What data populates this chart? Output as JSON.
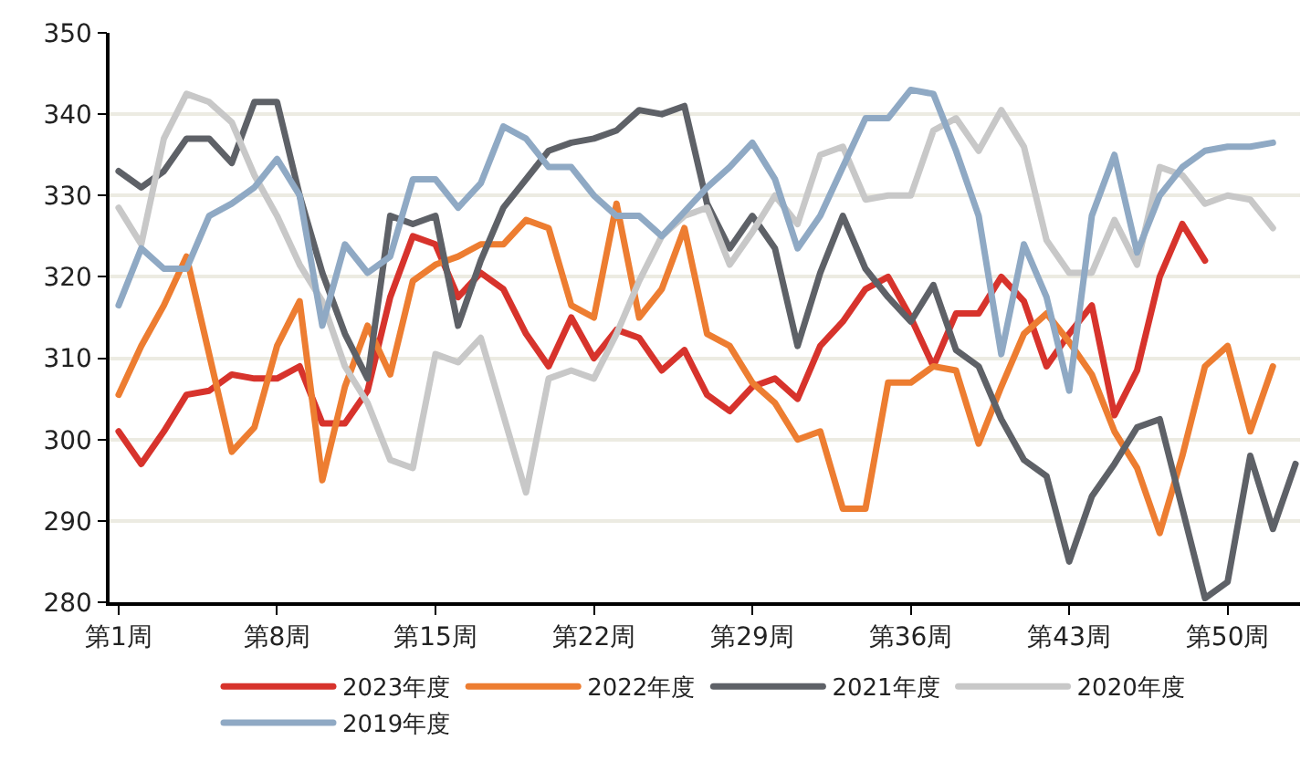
{
  "chart_data": {
    "type": "line",
    "categories": [
      "第1周",
      null,
      null,
      null,
      null,
      null,
      null,
      "第8周",
      null,
      null,
      null,
      null,
      null,
      null,
      "第15周",
      null,
      null,
      null,
      null,
      null,
      null,
      "第22周",
      null,
      null,
      null,
      null,
      null,
      null,
      "第29周",
      null,
      null,
      null,
      null,
      null,
      null,
      "第36周",
      null,
      null,
      null,
      null,
      null,
      null,
      "第43周",
      null,
      null,
      null,
      null,
      null,
      null,
      "第50周",
      null,
      null,
      null
    ],
    "series": [
      {
        "name": "2023年度",
        "color": "#d7332c",
        "values": [
          301,
          297,
          301,
          305.5,
          306,
          308,
          307.5,
          307.5,
          309,
          302,
          302,
          306,
          317.5,
          325,
          324,
          317.5,
          320.5,
          318.5,
          313,
          309,
          315,
          310,
          313.5,
          312.5,
          308.5,
          311,
          305.5,
          303.5,
          306.5,
          307.5,
          305,
          311.5,
          314.5,
          318.5,
          320,
          315,
          309,
          315.5,
          315.5,
          320,
          317,
          309,
          313,
          316.5,
          303,
          308.5,
          320,
          326.5,
          322,
          null,
          null,
          null,
          null
        ]
      },
      {
        "name": "2022年度",
        "color": "#ed7d31",
        "values": [
          305.5,
          311.5,
          316.5,
          322.5,
          310.5,
          298.5,
          301.5,
          311.5,
          317,
          295,
          306.5,
          314,
          308,
          319.5,
          321.5,
          322.5,
          324,
          324,
          327,
          326,
          316.5,
          315,
          329,
          315,
          318.5,
          326,
          313,
          311.5,
          307,
          304.5,
          300,
          301,
          291.5,
          291.5,
          307,
          307,
          309,
          308.5,
          299.5,
          306.5,
          313,
          315.5,
          312,
          308,
          301,
          296.5,
          288.5,
          298,
          309,
          311.5,
          301,
          309,
          null
        ]
      },
      {
        "name": "2021年度",
        "color": "#5e6167",
        "values": [
          333,
          331,
          333,
          337,
          337,
          334,
          341.5,
          341.5,
          330,
          320.5,
          313,
          307.5,
          327.5,
          326.5,
          327.5,
          314,
          322,
          328.5,
          332,
          335.5,
          336.5,
          337,
          338,
          340.5,
          340,
          341,
          329,
          323.5,
          327.5,
          323.5,
          311.5,
          320.5,
          327.5,
          321,
          317.5,
          314.5,
          319,
          311,
          309,
          302.5,
          297.5,
          295.5,
          285,
          293,
          297,
          301.5,
          302.5,
          291.5,
          280.5,
          282.5,
          298,
          289,
          297
        ]
      },
      {
        "name": "2020年度",
        "color": "#c8c8c8",
        "values": [
          328.5,
          324,
          337,
          342.5,
          341.5,
          339,
          332.5,
          327.5,
          321.5,
          317,
          309,
          304.5,
          297.5,
          296.5,
          310.5,
          309.5,
          312.5,
          303,
          293.5,
          307.5,
          308.5,
          307.5,
          313,
          319.5,
          325,
          327.5,
          328.5,
          321.5,
          325.5,
          330,
          326.5,
          335,
          336,
          329.5,
          330,
          330,
          338,
          339.5,
          335.5,
          340.5,
          336,
          324.5,
          320.5,
          320.5,
          327,
          321.5,
          333.5,
          332.5,
          329,
          330,
          329.5,
          326,
          null
        ]
      },
      {
        "name": "2019年度",
        "color": "#8fa9c4",
        "values": [
          316.5,
          323.5,
          321,
          321,
          327.5,
          329,
          331,
          334.5,
          330,
          314,
          324,
          320.5,
          322.5,
          332,
          332,
          328.5,
          331.5,
          338.5,
          337,
          333.5,
          333.5,
          330,
          327.5,
          327.5,
          325,
          328,
          331,
          333.5,
          336.5,
          332,
          323.5,
          327.5,
          333.5,
          339.5,
          339.5,
          343,
          342.5,
          335.5,
          327.5,
          310.5,
          324,
          317.5,
          306,
          327.5,
          335,
          323,
          330,
          333.5,
          335.5,
          336,
          336,
          336.5,
          null
        ]
      }
    ],
    "ylim": [
      280,
      350
    ],
    "yticks": [
      280,
      290,
      300,
      310,
      320,
      330,
      340,
      350
    ],
    "grid": "y",
    "legend": "bottom",
    "marker": "none",
    "line_style": "solid"
  }
}
